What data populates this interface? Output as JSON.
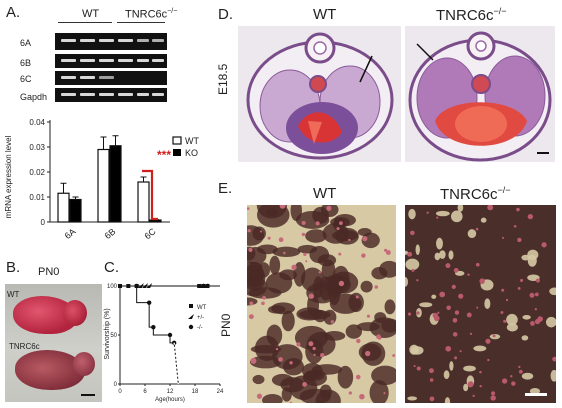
{
  "panelA": {
    "label": "A.",
    "wt": "WT",
    "ko": "TNRC6c",
    "ko_sup": "−/−",
    "rows": [
      "6A",
      "6B",
      "6C",
      "Gapdh"
    ]
  },
  "panelB": {
    "label": "B.",
    "title": "PN0",
    "wt": "WT",
    "ko": "TNRC6c"
  },
  "panelC": {
    "label": "C."
  },
  "panelD": {
    "label": "D.",
    "wt": "WT",
    "ko": "TNRC6c",
    "ko_sup": "−/−",
    "side": "E18.5"
  },
  "panelE": {
    "label": "E.",
    "wt": "WT",
    "ko": "TNRC6c",
    "ko_sup": "−/−",
    "side": "PN0"
  },
  "chart_data": [
    {
      "type": "bar",
      "ylabel": "mRNA expression level",
      "categories": [
        "6A",
        "6B",
        "6C"
      ],
      "series": [
        {
          "name": "WT",
          "values": [
            0.0115,
            0.029,
            0.016
          ],
          "errors": [
            0.004,
            0.005,
            0.002
          ],
          "color": "#ffffff"
        },
        {
          "name": "KO",
          "values": [
            0.009,
            0.0305,
            0.0008
          ],
          "errors": [
            0.001,
            0.004,
            0.0002
          ],
          "color": "#000000"
        }
      ],
      "ylim": [
        0,
        0.04
      ],
      "yticks": [
        "0",
        "0.01",
        "0.02",
        "0.03",
        "0.04"
      ],
      "significance": {
        "category": "6C",
        "label": "***",
        "color": "#d0201e"
      },
      "legend": "top-right"
    },
    {
      "type": "line",
      "ylabel": "Survivorship (%)",
      "xlabel": "Age(hours)",
      "xticks": [
        "0",
        "6",
        "12",
        "18",
        "24"
      ],
      "yticks": [
        "0",
        "50",
        "100"
      ],
      "xlim": [
        0,
        24
      ],
      "ylim": [
        0,
        100
      ],
      "series": [
        {
          "name": "WT",
          "marker": "square",
          "x": [
            0,
            24
          ],
          "y": [
            100,
            100
          ],
          "marks_x": [
            0,
            2,
            4,
            19,
            20,
            21
          ]
        },
        {
          "name": "+/-",
          "marker": "triangle",
          "x": [
            0,
            24
          ],
          "y": [
            100,
            100
          ],
          "marks_x": [
            5,
            6,
            7,
            19.5,
            20.5
          ]
        },
        {
          "name": "-/-",
          "marker": "circle",
          "x": [
            0,
            4,
            4,
            7,
            7,
            8,
            8,
            12,
            12,
            13,
            14
          ],
          "y": [
            100,
            100,
            83,
            83,
            58,
            58,
            50,
            50,
            42,
            42,
            0
          ]
        }
      ]
    }
  ]
}
